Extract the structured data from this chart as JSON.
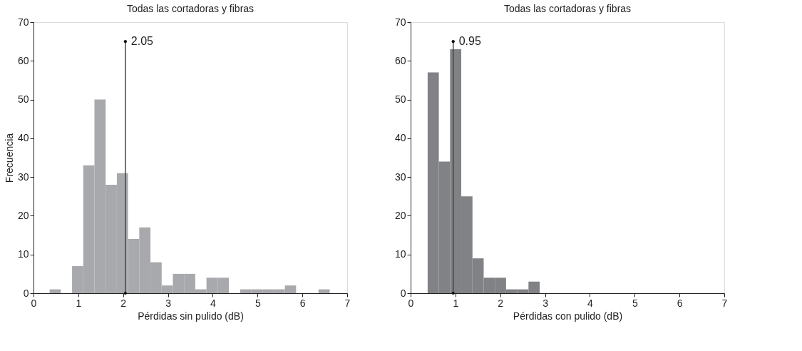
{
  "chart_data": [
    {
      "type": "histogram",
      "title": "Todas las cortadoras y fibras",
      "xlabel": "Pérdidas sin pulido (dB)",
      "ylabel": "Frecuencia",
      "color": "#a8a9ad",
      "bins": [
        0.36,
        0.61,
        0.86,
        1.11,
        1.36,
        1.61,
        1.86,
        2.11,
        2.36,
        2.61,
        2.86,
        3.11,
        3.36,
        3.61,
        3.86,
        4.11,
        4.36,
        4.61,
        4.86,
        5.11,
        5.36,
        5.61,
        5.86,
        6.11,
        6.36,
        6.61
      ],
      "values": [
        1,
        0,
        7,
        33,
        50,
        28,
        31,
        14,
        17,
        8,
        2,
        5,
        5,
        1,
        4,
        4,
        0,
        1,
        1,
        1,
        1,
        2,
        0,
        0,
        1
      ],
      "xlim": [
        0,
        7
      ],
      "xticks": [
        0,
        1,
        2,
        3,
        4,
        5,
        6,
        7
      ],
      "ylim": [
        0,
        70
      ],
      "yticks": [
        0,
        10,
        20,
        30,
        40,
        50,
        60,
        70
      ],
      "grid": false,
      "ref_lines": [
        {
          "axis": "x",
          "value": 2.05,
          "color": "#444444"
        }
      ],
      "annotations": [
        {
          "text": "2.05",
          "x": 2.05,
          "y": 65
        }
      ]
    },
    {
      "type": "histogram",
      "title": "Todas las cortadoras y fibras",
      "xlabel": "Pérdidas con pulido (dB)",
      "color": "#808285",
      "bins": [
        0.38,
        0.63,
        0.88,
        1.13,
        1.38,
        1.63,
        1.88,
        2.13,
        2.38,
        2.63,
        2.88
      ],
      "values": [
        57,
        34,
        63,
        25,
        9,
        4,
        4,
        1,
        1,
        3
      ],
      "xlim": [
        0,
        7
      ],
      "xticks": [
        0,
        1,
        2,
        3,
        4,
        5,
        6,
        7
      ],
      "ylim": [
        0,
        70
      ],
      "yticks": [
        0,
        10,
        20,
        30,
        40,
        50,
        60,
        70
      ],
      "grid": false,
      "ref_lines": [
        {
          "axis": "x",
          "value": 0.95,
          "color": "#444444"
        }
      ],
      "annotations": [
        {
          "text": "0.95",
          "x": 0.95,
          "y": 65
        }
      ]
    }
  ]
}
